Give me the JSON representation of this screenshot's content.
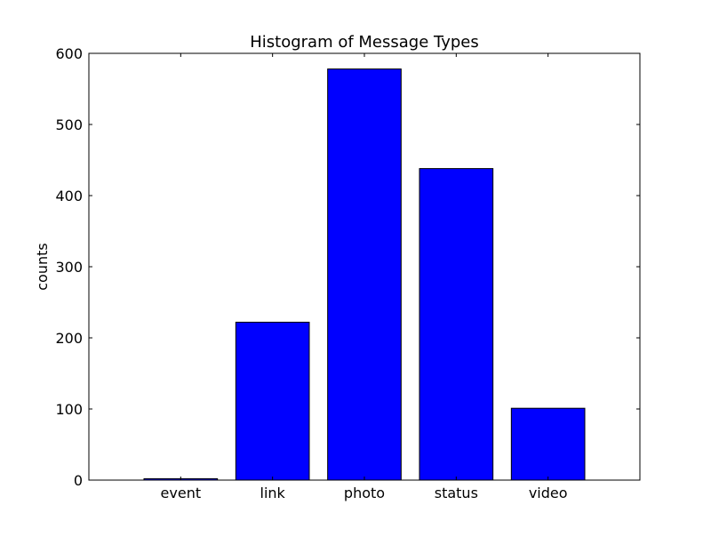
{
  "chart_data": {
    "type": "bar",
    "title": "Histogram of Message Types",
    "xlabel": "",
    "ylabel": "counts",
    "categories": [
      "event",
      "link",
      "photo",
      "status",
      "video"
    ],
    "values": [
      2,
      222,
      578,
      438,
      101
    ],
    "ylim": [
      0,
      600
    ],
    "yticks": [
      0,
      100,
      200,
      300,
      400,
      500,
      600
    ],
    "grid": false,
    "legend": "none",
    "bar_color": "#0000ff",
    "edge_color": "#000000"
  }
}
